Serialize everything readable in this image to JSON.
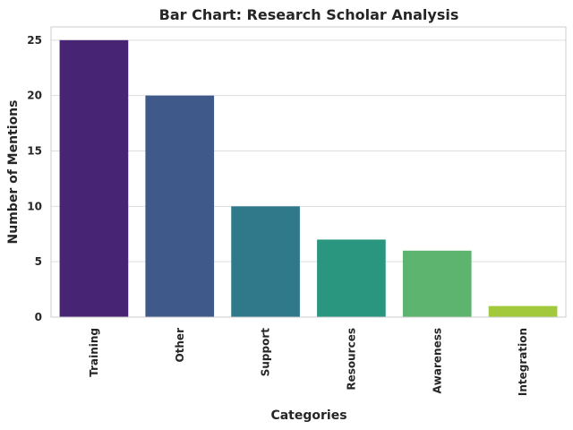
{
  "chart_data": {
    "type": "bar",
    "title": "Bar Chart: Research Scholar Analysis",
    "xlabel": "Categories",
    "ylabel": "Number of Mentions",
    "categories": [
      "Training",
      "Other",
      "Support",
      "Resources",
      "Awareness",
      "Integration"
    ],
    "values": [
      25,
      20,
      10,
      7,
      6,
      1
    ],
    "colors": [
      "#482475",
      "#3f5a8a",
      "#30798a",
      "#2a9680",
      "#5cb46f",
      "#a2c93b"
    ],
    "ylim": [
      0,
      26.2
    ],
    "yticks": [
      0,
      5,
      10,
      15,
      20,
      25
    ],
    "grid": true,
    "legend": false
  }
}
